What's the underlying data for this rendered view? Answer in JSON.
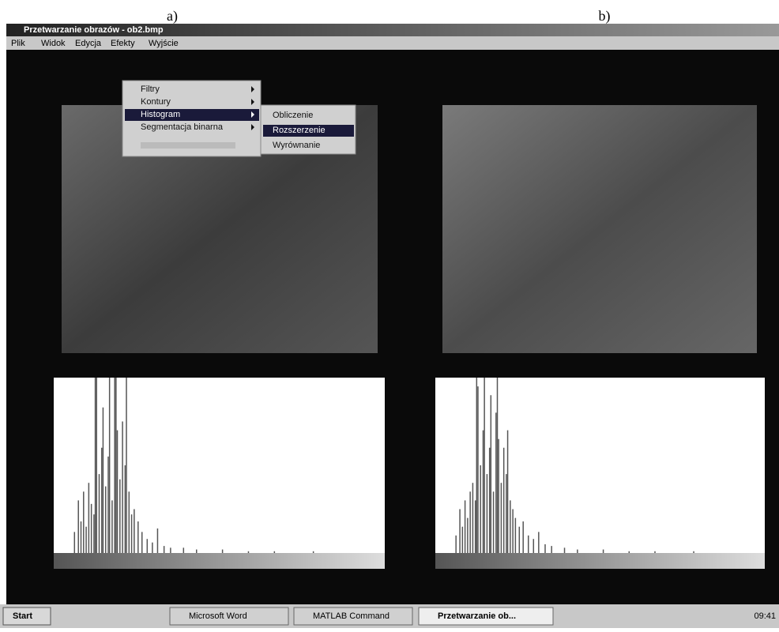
{
  "captions": [
    "a)",
    "b)"
  ],
  "window": {
    "title": "Przetwarzanie obrazów - ob2.bmp"
  },
  "menu": [
    "Plik",
    "Widok",
    "Edycja",
    "Efekty",
    "Wyjście"
  ],
  "efekty_menu": [
    "Filtry",
    "Kontury",
    "Histogram",
    "Segmentacja binarna"
  ],
  "histogram_menu": [
    "Obliczenie",
    "Rozszerzenie",
    "Wyrównanie"
  ],
  "taskbar": {
    "start": "Start",
    "tasks": [
      "Microsoft Word",
      "MATLAB Command",
      "Przetwarzanie ob..."
    ],
    "clock": "09:41"
  },
  "histograms": [
    {
      "type": "histogram",
      "xlim": [
        0,
        255
      ],
      "ylim": [
        0,
        100
      ],
      "color": "#555555",
      "x": [
        16,
        19,
        21,
        23,
        25,
        27,
        29,
        31,
        32,
        33,
        35,
        37,
        38,
        40,
        42,
        43,
        45,
        47,
        48,
        49,
        51,
        53,
        55,
        56,
        58,
        60,
        62,
        65,
        68,
        72,
        76,
        80,
        85,
        90,
        100,
        110,
        130,
        150,
        170,
        200
      ],
      "values": [
        12,
        30,
        18,
        35,
        15,
        40,
        28,
        22,
        100,
        100,
        45,
        60,
        83,
        38,
        55,
        100,
        30,
        100,
        100,
        70,
        42,
        75,
        50,
        100,
        35,
        22,
        25,
        18,
        12,
        8,
        6,
        14,
        4,
        3,
        3,
        2,
        2,
        1,
        1,
        1
      ]
    },
    {
      "type": "histogram",
      "xlim": [
        0,
        255
      ],
      "ylim": [
        0,
        100
      ],
      "color": "#555555",
      "x": [
        16,
        19,
        21,
        23,
        25,
        27,
        29,
        31,
        32,
        33,
        35,
        37,
        38,
        40,
        42,
        43,
        45,
        47,
        48,
        49,
        51,
        53,
        55,
        56,
        58,
        60,
        62,
        65,
        68,
        72,
        76,
        80,
        85,
        90,
        100,
        110,
        130,
        150,
        170,
        200
      ],
      "values": [
        10,
        25,
        15,
        30,
        20,
        35,
        40,
        30,
        100,
        95,
        50,
        70,
        100,
        45,
        60,
        90,
        35,
        80,
        100,
        65,
        40,
        60,
        45,
        70,
        30,
        25,
        20,
        15,
        18,
        10,
        8,
        12,
        5,
        4,
        3,
        2,
        2,
        1,
        1,
        1
      ]
    }
  ]
}
